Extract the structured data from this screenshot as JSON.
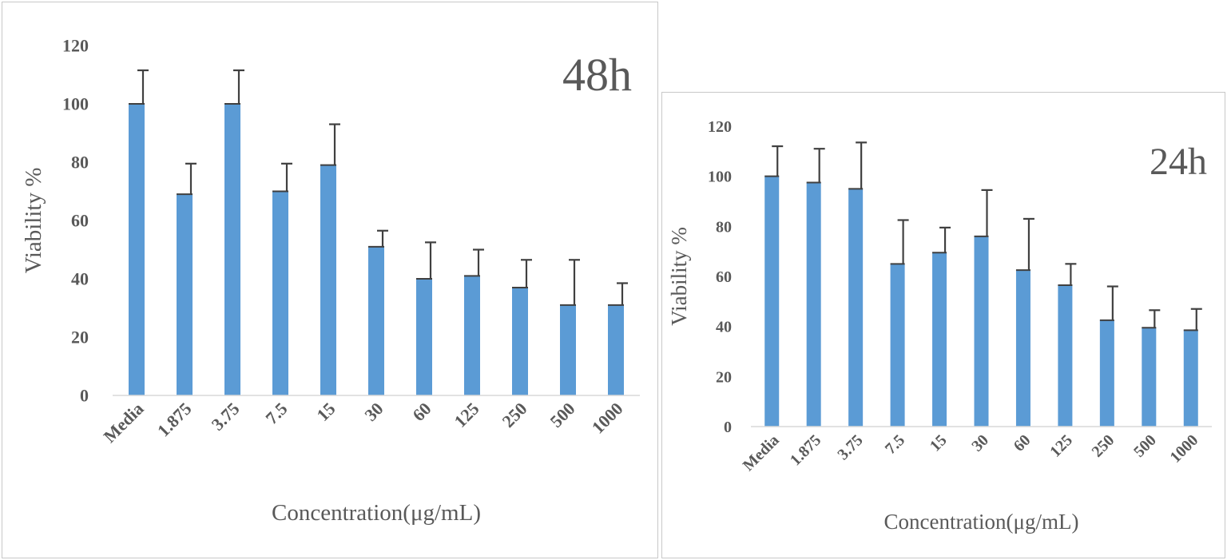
{
  "chart_data": [
    {
      "type": "bar",
      "title": "48h",
      "xlabel": "Concentration(μg/mL)",
      "ylabel": "Viability %",
      "ylim": [
        0,
        120
      ],
      "yticks": [
        "0",
        "20",
        "40",
        "60",
        "80",
        "100",
        "120"
      ],
      "categories": [
        "Media",
        "1.875",
        "3.75",
        "7.5",
        "15",
        "30",
        "60",
        "125",
        "250",
        "500",
        "1000"
      ],
      "values": [
        100,
        69,
        100,
        70,
        79,
        51,
        40,
        41,
        37,
        31,
        31
      ],
      "errors": [
        11.5,
        10.5,
        11.5,
        9.5,
        14,
        5.5,
        12.5,
        9,
        9.5,
        15.5,
        7.5
      ],
      "bar_color": "#5b9bd5",
      "error_color": "#404040",
      "grid": false
    },
    {
      "type": "bar",
      "title": "24h",
      "xlabel": "Concentration(μg/mL)",
      "ylabel": "Viability %",
      "ylim": [
        0,
        120
      ],
      "yticks": [
        "0",
        "20",
        "40",
        "60",
        "80",
        "100",
        "120"
      ],
      "categories": [
        "Media",
        "1.875",
        "3.75",
        "7.5",
        "15",
        "30",
        "60",
        "125",
        "250",
        "500",
        "1000"
      ],
      "values": [
        100,
        97.5,
        95,
        65,
        69.5,
        76,
        62.5,
        56.5,
        42.5,
        39.5,
        38.5
      ],
      "errors": [
        12,
        13.5,
        18.5,
        17.5,
        10,
        18.5,
        20.5,
        8.5,
        13.5,
        7,
        8.5
      ],
      "bar_color": "#5b9bd5",
      "error_color": "#404040",
      "grid": false
    }
  ]
}
